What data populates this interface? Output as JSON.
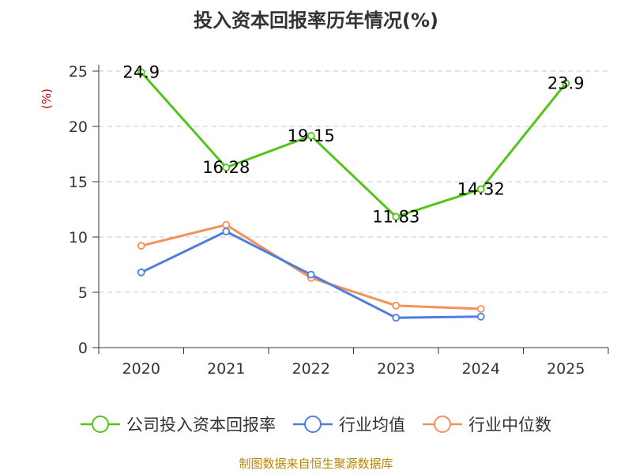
{
  "chart_data": {
    "type": "line",
    "title": "投入资本回报率历年情况(%)",
    "ylabel": "(%)",
    "xlabel": "",
    "categories": [
      "2020",
      "2021",
      "2022",
      "2023",
      "2024",
      "2025"
    ],
    "ylim": [
      0,
      25
    ],
    "yticks": [
      0,
      5,
      10,
      15,
      20,
      25
    ],
    "grid": true,
    "legend_position": "bottom",
    "series": [
      {
        "name": "公司投入资本回报率",
        "color": "#52c41a",
        "values": [
          24.9,
          16.28,
          19.15,
          11.83,
          14.32,
          23.9
        ],
        "labels": [
          "24.9",
          "16.28",
          "19.15",
          "11.83",
          "14.32",
          "23.9"
        ]
      },
      {
        "name": "行业均值",
        "color": "#4f7fdc",
        "values": [
          6.8,
          10.5,
          6.6,
          2.7,
          2.8,
          null
        ]
      },
      {
        "name": "行业中位数",
        "color": "#f4915a",
        "values": [
          9.2,
          11.1,
          6.3,
          3.8,
          3.5,
          null
        ]
      }
    ]
  },
  "source": "制图数据来自恒生聚源数据库"
}
